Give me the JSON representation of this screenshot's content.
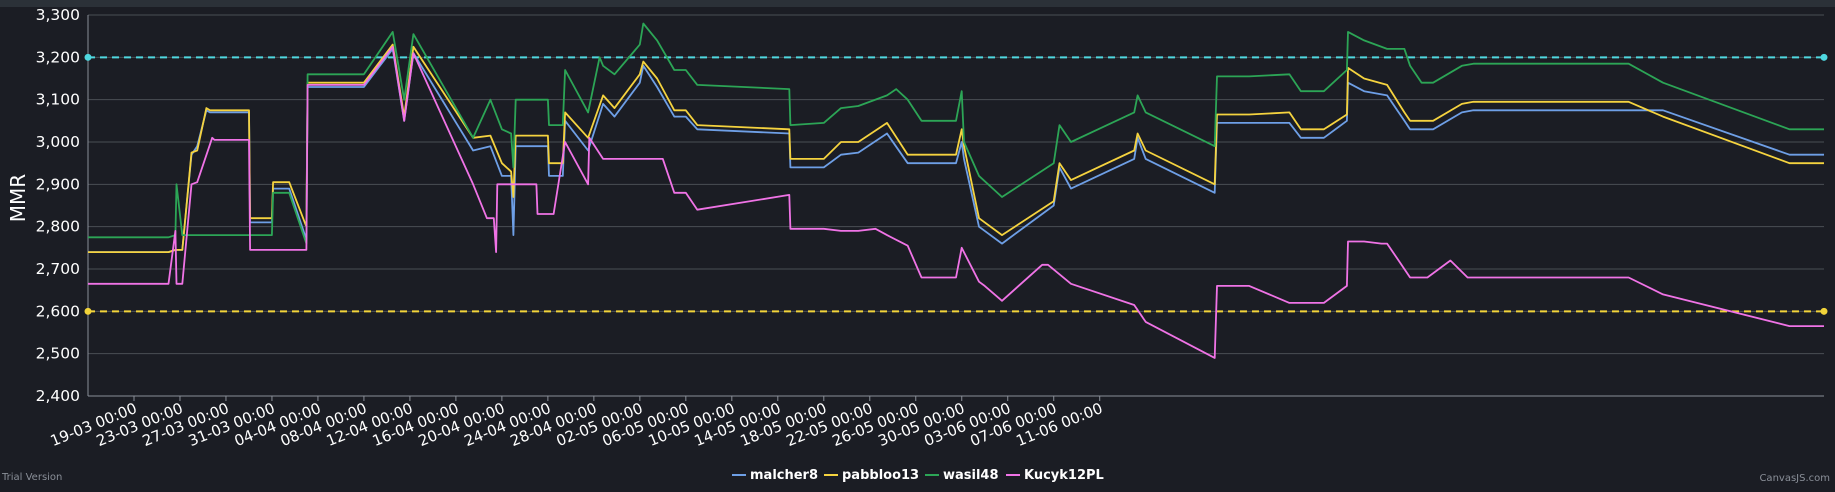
{
  "chart_data": {
    "type": "line",
    "ylabel": "MMR",
    "ylim": [
      2400,
      3300
    ],
    "yticks": [
      "2,400",
      "2,500",
      "2,600",
      "2,700",
      "2,800",
      "2,900",
      "3,000",
      "3,100",
      "3,200",
      "3,300"
    ],
    "xticks": [
      "19-03 00:00",
      "23-03 00:00",
      "27-03 00:00",
      "31-03 00:00",
      "04-04 00:00",
      "08-04 00:00",
      "12-04 00:00",
      "16-04 00:00",
      "20-04 00:00",
      "24-04 00:00",
      "28-04 00:00",
      "02-05 00:00",
      "06-05 00:00",
      "10-05 00:00",
      "14-05 00:00",
      "18-05 00:00",
      "22-05 00:00",
      "26-05 00:00",
      "30-05 00:00",
      "03-06 00:00",
      "07-06 00:00",
      "11-06 00:00"
    ],
    "x_days_since_first_tick": true,
    "striplines": [
      {
        "value": 3200,
        "color": "#4fd8e0"
      },
      {
        "value": 2600,
        "color": "#f2d43a"
      }
    ],
    "series": [
      {
        "name": "malcher8",
        "color": "#6e9fe6",
        "points": [
          [
            -4,
            2740
          ],
          [
            3,
            2740
          ],
          [
            3.6,
            2745
          ],
          [
            4.2,
            2745
          ],
          [
            5,
            2970
          ],
          [
            5.5,
            2990
          ],
          [
            6.3,
            3075
          ],
          [
            6.6,
            3070
          ],
          [
            10,
            3070
          ],
          [
            10.1,
            2810
          ],
          [
            12,
            2810
          ],
          [
            12.1,
            2890
          ],
          [
            13.5,
            2890
          ],
          [
            15,
            2770
          ],
          [
            15.1,
            3130
          ],
          [
            20,
            3130
          ],
          [
            22.5,
            3220
          ],
          [
            23.5,
            3050
          ],
          [
            24.3,
            3210
          ],
          [
            29.5,
            2980
          ],
          [
            31,
            2990
          ],
          [
            32,
            2920
          ],
          [
            32.8,
            2920
          ],
          [
            33,
            2780
          ],
          [
            33.2,
            2990
          ],
          [
            36,
            2990
          ],
          [
            36.1,
            2920
          ],
          [
            37.3,
            2920
          ],
          [
            37.5,
            3050
          ],
          [
            39.5,
            2980
          ],
          [
            40.8,
            3090
          ],
          [
            41.8,
            3060
          ],
          [
            44,
            3140
          ],
          [
            44.3,
            3180
          ],
          [
            45.5,
            3130
          ],
          [
            47,
            3060
          ],
          [
            48,
            3060
          ],
          [
            49,
            3030
          ],
          [
            57,
            3020
          ],
          [
            57.1,
            2940
          ],
          [
            60,
            2940
          ],
          [
            61.5,
            2970
          ],
          [
            63,
            2975
          ],
          [
            65.5,
            3020
          ],
          [
            67.3,
            2950
          ],
          [
            71.5,
            2950
          ],
          [
            72,
            3000
          ],
          [
            72.2,
            2960
          ],
          [
            73.5,
            2800
          ],
          [
            75.5,
            2760
          ],
          [
            80,
            2850
          ],
          [
            80.5,
            2940
          ],
          [
            81.5,
            2890
          ],
          [
            87,
            2960
          ],
          [
            87.3,
            3010
          ],
          [
            88,
            2960
          ],
          [
            94,
            2880
          ],
          [
            94.2,
            3045
          ],
          [
            97,
            3045
          ],
          [
            100.5,
            3045
          ],
          [
            101.5,
            3010
          ],
          [
            103.5,
            3010
          ],
          [
            105.5,
            3050
          ],
          [
            105.6,
            3140
          ],
          [
            107,
            3120
          ],
          [
            109,
            3110
          ],
          [
            110.5,
            3050
          ],
          [
            111,
            3030
          ],
          [
            113,
            3030
          ],
          [
            115.5,
            3070
          ],
          [
            116.5,
            3075
          ],
          [
            130,
            3075
          ],
          [
            133,
            3075
          ],
          [
            144,
            2970
          ],
          [
            147,
            2970
          ]
        ]
      },
      {
        "name": "pabbloo13",
        "color": "#f5d33f",
        "points": [
          [
            -4,
            2740
          ],
          [
            3,
            2740
          ],
          [
            3.6,
            2745
          ],
          [
            4.2,
            2745
          ],
          [
            5,
            2975
          ],
          [
            5.5,
            2980
          ],
          [
            6.3,
            3080
          ],
          [
            6.6,
            3075
          ],
          [
            10,
            3075
          ],
          [
            10.1,
            2820
          ],
          [
            12,
            2820
          ],
          [
            12.1,
            2905
          ],
          [
            13.5,
            2905
          ],
          [
            15,
            2800
          ],
          [
            15.1,
            3140
          ],
          [
            20,
            3140
          ],
          [
            22.5,
            3230
          ],
          [
            23.5,
            3060
          ],
          [
            24.3,
            3225
          ],
          [
            29.5,
            3010
          ],
          [
            31,
            3015
          ],
          [
            32,
            2950
          ],
          [
            32.8,
            2930
          ],
          [
            33,
            2870
          ],
          [
            33.2,
            3015
          ],
          [
            36,
            3015
          ],
          [
            36.1,
            2950
          ],
          [
            37.3,
            2950
          ],
          [
            37.5,
            3070
          ],
          [
            39.5,
            3010
          ],
          [
            40.8,
            3110
          ],
          [
            41.8,
            3080
          ],
          [
            44,
            3160
          ],
          [
            44.3,
            3190
          ],
          [
            45.5,
            3150
          ],
          [
            47,
            3075
          ],
          [
            48,
            3075
          ],
          [
            49,
            3040
          ],
          [
            57,
            3030
          ],
          [
            57.1,
            2960
          ],
          [
            60,
            2960
          ],
          [
            61.5,
            3000
          ],
          [
            63,
            3000
          ],
          [
            65.5,
            3045
          ],
          [
            67.3,
            2970
          ],
          [
            71.5,
            2970
          ],
          [
            72,
            3030
          ],
          [
            72.2,
            2990
          ],
          [
            73.5,
            2820
          ],
          [
            75.5,
            2780
          ],
          [
            80,
            2860
          ],
          [
            80.5,
            2950
          ],
          [
            81.5,
            2910
          ],
          [
            87,
            2980
          ],
          [
            87.3,
            3020
          ],
          [
            88,
            2980
          ],
          [
            94,
            2900
          ],
          [
            94.2,
            3065
          ],
          [
            97,
            3065
          ],
          [
            100.5,
            3070
          ],
          [
            101.5,
            3030
          ],
          [
            103.5,
            3030
          ],
          [
            105.5,
            3065
          ],
          [
            105.6,
            3175
          ],
          [
            107,
            3150
          ],
          [
            109,
            3135
          ],
          [
            110.5,
            3070
          ],
          [
            111,
            3050
          ],
          [
            113,
            3050
          ],
          [
            115.5,
            3090
          ],
          [
            116.5,
            3095
          ],
          [
            130,
            3095
          ],
          [
            133,
            3060
          ],
          [
            144,
            2950
          ],
          [
            147,
            2950
          ]
        ]
      },
      {
        "name": "wasil48",
        "color": "#2ca556",
        "points": [
          [
            -4,
            2775
          ],
          [
            3,
            2775
          ],
          [
            3.6,
            2780
          ],
          [
            3.7,
            2900
          ],
          [
            4.2,
            2780
          ],
          [
            12,
            2780
          ],
          [
            12.1,
            2880
          ],
          [
            13.5,
            2880
          ],
          [
            15,
            2760
          ],
          [
            15.1,
            3160
          ],
          [
            20,
            3160
          ],
          [
            22.5,
            3260
          ],
          [
            23.5,
            3100
          ],
          [
            24.3,
            3255
          ],
          [
            29.5,
            3010
          ],
          [
            31,
            3100
          ],
          [
            32,
            3030
          ],
          [
            32.8,
            3020
          ],
          [
            33,
            2940
          ],
          [
            33.2,
            3100
          ],
          [
            36,
            3100
          ],
          [
            36.1,
            3040
          ],
          [
            37.3,
            3040
          ],
          [
            37.5,
            3170
          ],
          [
            39.5,
            3070
          ],
          [
            40.5,
            3200
          ],
          [
            40.8,
            3180
          ],
          [
            41.8,
            3160
          ],
          [
            44,
            3230
          ],
          [
            44.3,
            3280
          ],
          [
            45.5,
            3240
          ],
          [
            47,
            3170
          ],
          [
            48,
            3170
          ],
          [
            49,
            3135
          ],
          [
            57,
            3125
          ],
          [
            57.1,
            3040
          ],
          [
            60,
            3045
          ],
          [
            61.5,
            3080
          ],
          [
            63,
            3085
          ],
          [
            65.5,
            3110
          ],
          [
            66.3,
            3125
          ],
          [
            67.3,
            3100
          ],
          [
            68.5,
            3050
          ],
          [
            71.5,
            3050
          ],
          [
            72,
            3120
          ],
          [
            72.2,
            3000
          ],
          [
            73.5,
            2920
          ],
          [
            75.5,
            2870
          ],
          [
            80,
            2950
          ],
          [
            80.5,
            3040
          ],
          [
            81.5,
            3000
          ],
          [
            87,
            3070
          ],
          [
            87.3,
            3110
          ],
          [
            88,
            3070
          ],
          [
            94,
            2990
          ],
          [
            94.2,
            3155
          ],
          [
            97,
            3155
          ],
          [
            100.5,
            3160
          ],
          [
            101.5,
            3120
          ],
          [
            103.5,
            3120
          ],
          [
            105.5,
            3170
          ],
          [
            105.6,
            3260
          ],
          [
            107,
            3240
          ],
          [
            109,
            3220
          ],
          [
            110.5,
            3220
          ],
          [
            111,
            3180
          ],
          [
            112,
            3140
          ],
          [
            113,
            3140
          ],
          [
            115.5,
            3180
          ],
          [
            116.5,
            3185
          ],
          [
            130,
            3185
          ],
          [
            133,
            3140
          ],
          [
            144,
            3030
          ],
          [
            147,
            3030
          ]
        ]
      },
      {
        "name": "Kucyk12PL",
        "color": "#f073e6",
        "points": [
          [
            -4,
            2665
          ],
          [
            3,
            2665
          ],
          [
            3.6,
            2790
          ],
          [
            3.7,
            2665
          ],
          [
            4.2,
            2665
          ],
          [
            5,
            2900
          ],
          [
            5.5,
            2905
          ],
          [
            6.8,
            3010
          ],
          [
            7,
            3005
          ],
          [
            10,
            3005
          ],
          [
            10.1,
            2745
          ],
          [
            15,
            2745
          ],
          [
            15.1,
            3135
          ],
          [
            20,
            3135
          ],
          [
            22.5,
            3225
          ],
          [
            23.5,
            3050
          ],
          [
            24.3,
            3210
          ],
          [
            29.5,
            2900
          ],
          [
            30.7,
            2820
          ],
          [
            31.3,
            2820
          ],
          [
            31.5,
            2740
          ],
          [
            31.6,
            2900
          ],
          [
            35,
            2900
          ],
          [
            35.1,
            2830
          ],
          [
            36.5,
            2830
          ],
          [
            37.5,
            3000
          ],
          [
            39.5,
            2900
          ],
          [
            39.6,
            3010
          ],
          [
            40.8,
            2960
          ],
          [
            44,
            2960
          ],
          [
            46,
            2960
          ],
          [
            47,
            2880
          ],
          [
            48,
            2880
          ],
          [
            49,
            2840
          ],
          [
            57,
            2875
          ],
          [
            57.1,
            2795
          ],
          [
            60,
            2795
          ],
          [
            61.5,
            2790
          ],
          [
            63,
            2790
          ],
          [
            64.5,
            2795
          ],
          [
            65.5,
            2780
          ],
          [
            67.3,
            2755
          ],
          [
            68.5,
            2680
          ],
          [
            71.5,
            2680
          ],
          [
            72,
            2750
          ],
          [
            73.5,
            2670
          ],
          [
            74,
            2660
          ],
          [
            75.5,
            2625
          ],
          [
            79,
            2710
          ],
          [
            79.5,
            2710
          ],
          [
            81.5,
            2665
          ],
          [
            87,
            2615
          ],
          [
            88,
            2575
          ],
          [
            94,
            2490
          ],
          [
            94.2,
            2660
          ],
          [
            97,
            2660
          ],
          [
            100.5,
            2620
          ],
          [
            103.5,
            2620
          ],
          [
            105.5,
            2660
          ],
          [
            105.6,
            2765
          ],
          [
            107,
            2765
          ],
          [
            108.5,
            2760
          ],
          [
            109,
            2760
          ],
          [
            110,
            2720
          ],
          [
            111,
            2680
          ],
          [
            112.5,
            2680
          ],
          [
            114.5,
            2720
          ],
          [
            116,
            2680
          ],
          [
            121,
            2680
          ],
          [
            130,
            2680
          ],
          [
            133,
            2640
          ],
          [
            144,
            2565
          ],
          [
            147,
            2565
          ]
        ]
      }
    ]
  },
  "watermarks": {
    "left": "Trial Version",
    "right": "CanvasJS.com"
  }
}
